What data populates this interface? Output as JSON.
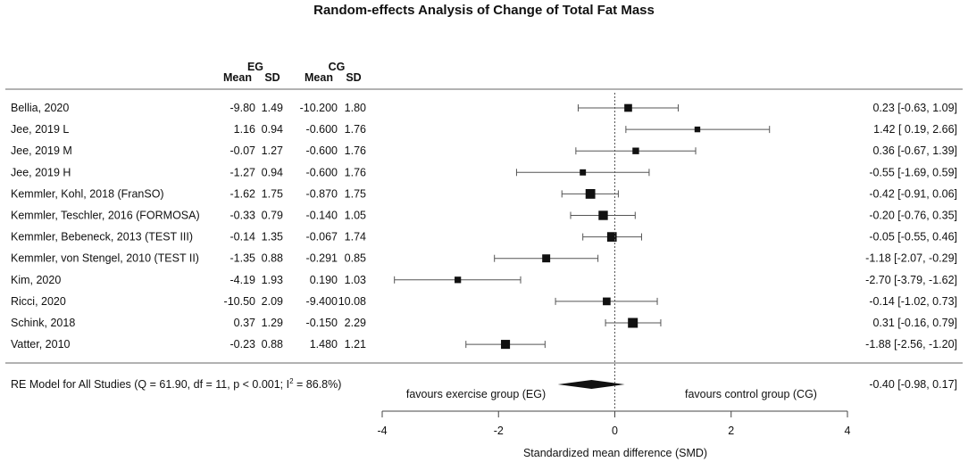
{
  "chart_data": {
    "type": "forest",
    "title": "Random-effects Analysis of Change of Total Fat Mass",
    "columns": {
      "eg_label": "EG",
      "cg_label": "CG",
      "mean_label": "Mean",
      "sd_label": "SD"
    },
    "studies": [
      {
        "name": "Bellia, 2020",
        "eg_mean": "-9.80",
        "eg_sd": "1.49",
        "cg_mean": "-10.200",
        "cg_sd": "1.80",
        "smd": 0.23,
        "lo": -0.63,
        "hi": 1.09,
        "ci_text": "0.23 [-0.63,  1.09]",
        "weight": 0.5
      },
      {
        "name": "Jee, 2019 L",
        "eg_mean": "1.16",
        "eg_sd": "0.94",
        "cg_mean": "-0.600",
        "cg_sd": "1.76",
        "smd": 1.42,
        "lo": 0.19,
        "hi": 2.66,
        "ci_text": "1.42 [ 0.19,  2.66]",
        "weight": 0.18
      },
      {
        "name": "Jee, 2019 M",
        "eg_mean": "-0.07",
        "eg_sd": "1.27",
        "cg_mean": "-0.600",
        "cg_sd": "1.76",
        "smd": 0.36,
        "lo": -0.67,
        "hi": 1.39,
        "ci_text": "0.36 [-0.67,  1.39]",
        "weight": 0.3
      },
      {
        "name": "Jee, 2019 H",
        "eg_mean": "-1.27",
        "eg_sd": "0.94",
        "cg_mean": "-0.600",
        "cg_sd": "1.76",
        "smd": -0.55,
        "lo": -1.69,
        "hi": 0.59,
        "ci_text": "-0.55 [-1.69,  0.59]",
        "weight": 0.24
      },
      {
        "name": "Kemmler, Kohl, 2018 (FranSO)",
        "eg_mean": "-1.62",
        "eg_sd": "1.75",
        "cg_mean": "-0.870",
        "cg_sd": "1.75",
        "smd": -0.42,
        "lo": -0.91,
        "hi": 0.06,
        "ci_text": "-0.42 [-0.91,  0.06]",
        "weight": 0.95
      },
      {
        "name": "Kemmler, Teschler, 2016 (FORMOSA)",
        "eg_mean": "-0.33",
        "eg_sd": "0.79",
        "cg_mean": "-0.140",
        "cg_sd": "1.05",
        "smd": -0.2,
        "lo": -0.76,
        "hi": 0.35,
        "ci_text": "-0.20 [-0.76,  0.35]",
        "weight": 0.85
      },
      {
        "name": "Kemmler, Bebeneck, 2013 (TEST III)",
        "eg_mean": "-0.14",
        "eg_sd": "1.35",
        "cg_mean": "-0.067",
        "cg_sd": "1.74",
        "smd": -0.05,
        "lo": -0.55,
        "hi": 0.46,
        "ci_text": "-0.05 [-0.55,  0.46]",
        "weight": 0.92
      },
      {
        "name": "Kemmler, von Stengel, 2010 (TEST II)",
        "eg_mean": "-1.35",
        "eg_sd": "0.88",
        "cg_mean": "-0.291",
        "cg_sd": "0.85",
        "smd": -1.18,
        "lo": -2.07,
        "hi": -0.29,
        "ci_text": "-1.18 [-2.07, -0.29]",
        "weight": 0.55
      },
      {
        "name": "Kim, 2020",
        "eg_mean": "-4.19",
        "eg_sd": "1.93",
        "cg_mean": "0.190",
        "cg_sd": "1.03",
        "smd": -2.7,
        "lo": -3.79,
        "hi": -1.62,
        "ci_text": "-2.70 [-3.79, -1.62]",
        "weight": 0.28
      },
      {
        "name": "Ricci, 2020",
        "eg_mean": "-10.50",
        "eg_sd": "2.09",
        "cg_mean": "-9.400",
        "cg_sd": "10.08",
        "smd": -0.14,
        "lo": -1.02,
        "hi": 0.73,
        "ci_text": "-0.14 [-1.02,  0.73]",
        "weight": 0.5
      },
      {
        "name": "Schink, 2018",
        "eg_mean": "0.37",
        "eg_sd": "1.29",
        "cg_mean": "-0.150",
        "cg_sd": "2.29",
        "smd": 0.31,
        "lo": -0.16,
        "hi": 0.79,
        "ci_text": "0.31 [-0.16,  0.79]",
        "weight": 1.0
      },
      {
        "name": "Vatter, 2010",
        "eg_mean": "-0.23",
        "eg_sd": "0.88",
        "cg_mean": "1.480",
        "cg_sd": "1.21",
        "smd": -1.88,
        "lo": -2.56,
        "hi": -1.2,
        "ci_text": "-1.88 [-2.56, -1.20]",
        "weight": 0.78
      }
    ],
    "summary": {
      "label_main": "RE Model for All Studies (Q = 61.90, df = 11, p < 0.001; I",
      "label_sup": "2",
      "label_tail": " = 86.8%)",
      "smd": -0.4,
      "lo": -0.98,
      "hi": 0.17,
      "ci_text": "-0.40 [-0.98,  0.17]"
    },
    "favours_left": "favours exercise group (EG)",
    "favours_right": "favours control group (CG)",
    "xlabel": "Standardized mean difference (SMD)",
    "xlim": [
      -4,
      4
    ],
    "xticks": [
      "-4",
      "-2",
      "0",
      "2",
      "4"
    ],
    "ref_line": 0
  }
}
